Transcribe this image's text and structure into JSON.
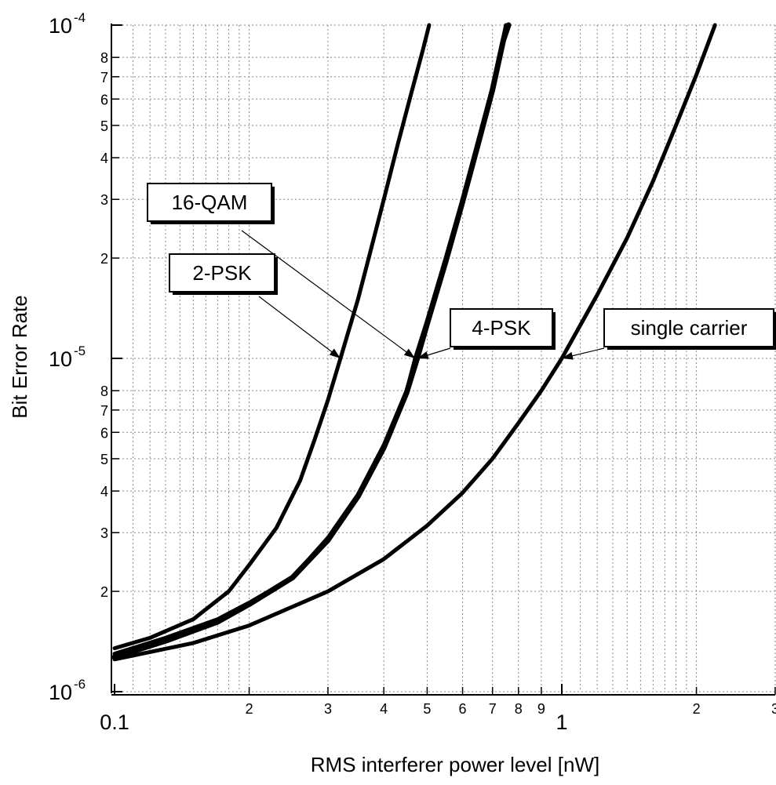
{
  "chart_data": {
    "type": "line",
    "xlabel": "RMS interferer power level [nW]",
    "ylabel": "Bit Error Rate",
    "xscale": "log",
    "yscale": "log",
    "xlim": [
      0.1,
      3
    ],
    "ylim": [
      1e-06,
      0.0001
    ],
    "grid": true,
    "x_major_ticks": [
      {
        "value": 0.1,
        "label": "0.1"
      },
      {
        "value": 1,
        "label": "1"
      }
    ],
    "x_minor_ticks": [
      {
        "value": 0.2,
        "label": "2"
      },
      {
        "value": 0.3,
        "label": "3"
      },
      {
        "value": 0.4,
        "label": "4"
      },
      {
        "value": 0.5,
        "label": "5"
      },
      {
        "value": 0.6,
        "label": "6"
      },
      {
        "value": 0.7,
        "label": "7"
      },
      {
        "value": 0.8,
        "label": "8"
      },
      {
        "value": 0.9,
        "label": "9"
      },
      {
        "value": 2,
        "label": "2"
      },
      {
        "value": 3,
        "label": "3"
      }
    ],
    "y_major_ticks": [
      {
        "value": 1e-06,
        "base": "10",
        "exp": "-6"
      },
      {
        "value": 1e-05,
        "base": "10",
        "exp": "-5"
      },
      {
        "value": 0.0001,
        "base": "10",
        "exp": "-4"
      }
    ],
    "y_minor_ticks": [
      {
        "value": 2e-06,
        "label": "2"
      },
      {
        "value": 3e-06,
        "label": "3"
      },
      {
        "value": 4e-06,
        "label": "4"
      },
      {
        "value": 5e-06,
        "label": "5"
      },
      {
        "value": 6e-06,
        "label": "6"
      },
      {
        "value": 7e-06,
        "label": "7"
      },
      {
        "value": 8e-06,
        "label": "8"
      },
      {
        "value": 2e-05,
        "label": "2"
      },
      {
        "value": 3e-05,
        "label": "3"
      },
      {
        "value": 4e-05,
        "label": "4"
      },
      {
        "value": 5e-05,
        "label": "5"
      },
      {
        "value": 6e-05,
        "label": "6"
      },
      {
        "value": 7e-05,
        "label": "7"
      },
      {
        "value": 8e-05,
        "label": "8"
      }
    ],
    "series": [
      {
        "name": "2-PSK",
        "color": "#000000",
        "points": [
          [
            0.1,
            1.35e-06
          ],
          [
            0.12,
            1.45e-06
          ],
          [
            0.15,
            1.65e-06
          ],
          [
            0.18,
            2e-06
          ],
          [
            0.2,
            2.4e-06
          ],
          [
            0.23,
            3.1e-06
          ],
          [
            0.26,
            4.3e-06
          ],
          [
            0.28,
            5.7e-06
          ],
          [
            0.3,
            7.5e-06
          ],
          [
            0.32,
            1e-05
          ],
          [
            0.35,
            1.5e-05
          ],
          [
            0.37,
            2e-05
          ],
          [
            0.4,
            3e-05
          ],
          [
            0.43,
            4.4e-05
          ],
          [
            0.46,
            6.2e-05
          ],
          [
            0.49,
            8.5e-05
          ],
          [
            0.505,
            0.0001
          ]
        ]
      },
      {
        "name": "16-QAM",
        "color": "#000000",
        "points": [
          [
            0.1,
            1.3e-06
          ],
          [
            0.13,
            1.45e-06
          ],
          [
            0.17,
            1.65e-06
          ],
          [
            0.2,
            1.85e-06
          ],
          [
            0.25,
            2.2e-06
          ],
          [
            0.3,
            2.9e-06
          ],
          [
            0.35,
            3.9e-06
          ],
          [
            0.4,
            5.5e-06
          ],
          [
            0.45,
            8e-06
          ],
          [
            0.47,
            1e-05
          ],
          [
            0.5,
            1.3e-05
          ],
          [
            0.55,
            2e-05
          ],
          [
            0.6,
            3e-05
          ],
          [
            0.65,
            4.5e-05
          ],
          [
            0.7,
            6.5e-05
          ],
          [
            0.75,
            0.0001
          ]
        ]
      },
      {
        "name": "4-PSK",
        "color": "#000000",
        "points": [
          [
            0.1,
            1.27e-06
          ],
          [
            0.13,
            1.42e-06
          ],
          [
            0.17,
            1.62e-06
          ],
          [
            0.2,
            1.83e-06
          ],
          [
            0.25,
            2.2e-06
          ],
          [
            0.3,
            2.85e-06
          ],
          [
            0.35,
            3.85e-06
          ],
          [
            0.4,
            5.4e-06
          ],
          [
            0.45,
            7.9e-06
          ],
          [
            0.475,
            1e-05
          ],
          [
            0.5,
            1.27e-05
          ],
          [
            0.55,
            1.95e-05
          ],
          [
            0.6,
            2.95e-05
          ],
          [
            0.65,
            4.4e-05
          ],
          [
            0.7,
            6.4e-05
          ],
          [
            0.74,
            9e-05
          ],
          [
            0.76,
            0.0001
          ]
        ]
      },
      {
        "name": "single carrier",
        "color": "#000000",
        "points": [
          [
            0.1,
            1.25e-06
          ],
          [
            0.15,
            1.4e-06
          ],
          [
            0.2,
            1.58e-06
          ],
          [
            0.3,
            2e-06
          ],
          [
            0.4,
            2.5e-06
          ],
          [
            0.5,
            3.15e-06
          ],
          [
            0.6,
            3.95e-06
          ],
          [
            0.7,
            5e-06
          ],
          [
            0.8,
            6.4e-06
          ],
          [
            0.9,
            8e-06
          ],
          [
            1.0,
            1e-05
          ],
          [
            1.2,
            1.55e-05
          ],
          [
            1.4,
            2.3e-05
          ],
          [
            1.6,
            3.4e-05
          ],
          [
            1.8,
            5e-05
          ],
          [
            2.0,
            7.1e-05
          ],
          [
            2.2,
            0.0001
          ]
        ]
      }
    ],
    "annotations": [
      {
        "text": "16-QAM",
        "target_series": "16-QAM",
        "target": [
          0.47,
          1e-05
        ]
      },
      {
        "text": "2-PSK",
        "target_series": "2-PSK",
        "target": [
          0.32,
          1e-05
        ]
      },
      {
        "text": "4-PSK",
        "target_series": "4-PSK",
        "target": [
          0.475,
          1e-05
        ]
      },
      {
        "text": "single carrier",
        "target_series": "single carrier",
        "target": [
          1.0,
          1e-05
        ]
      }
    ]
  }
}
